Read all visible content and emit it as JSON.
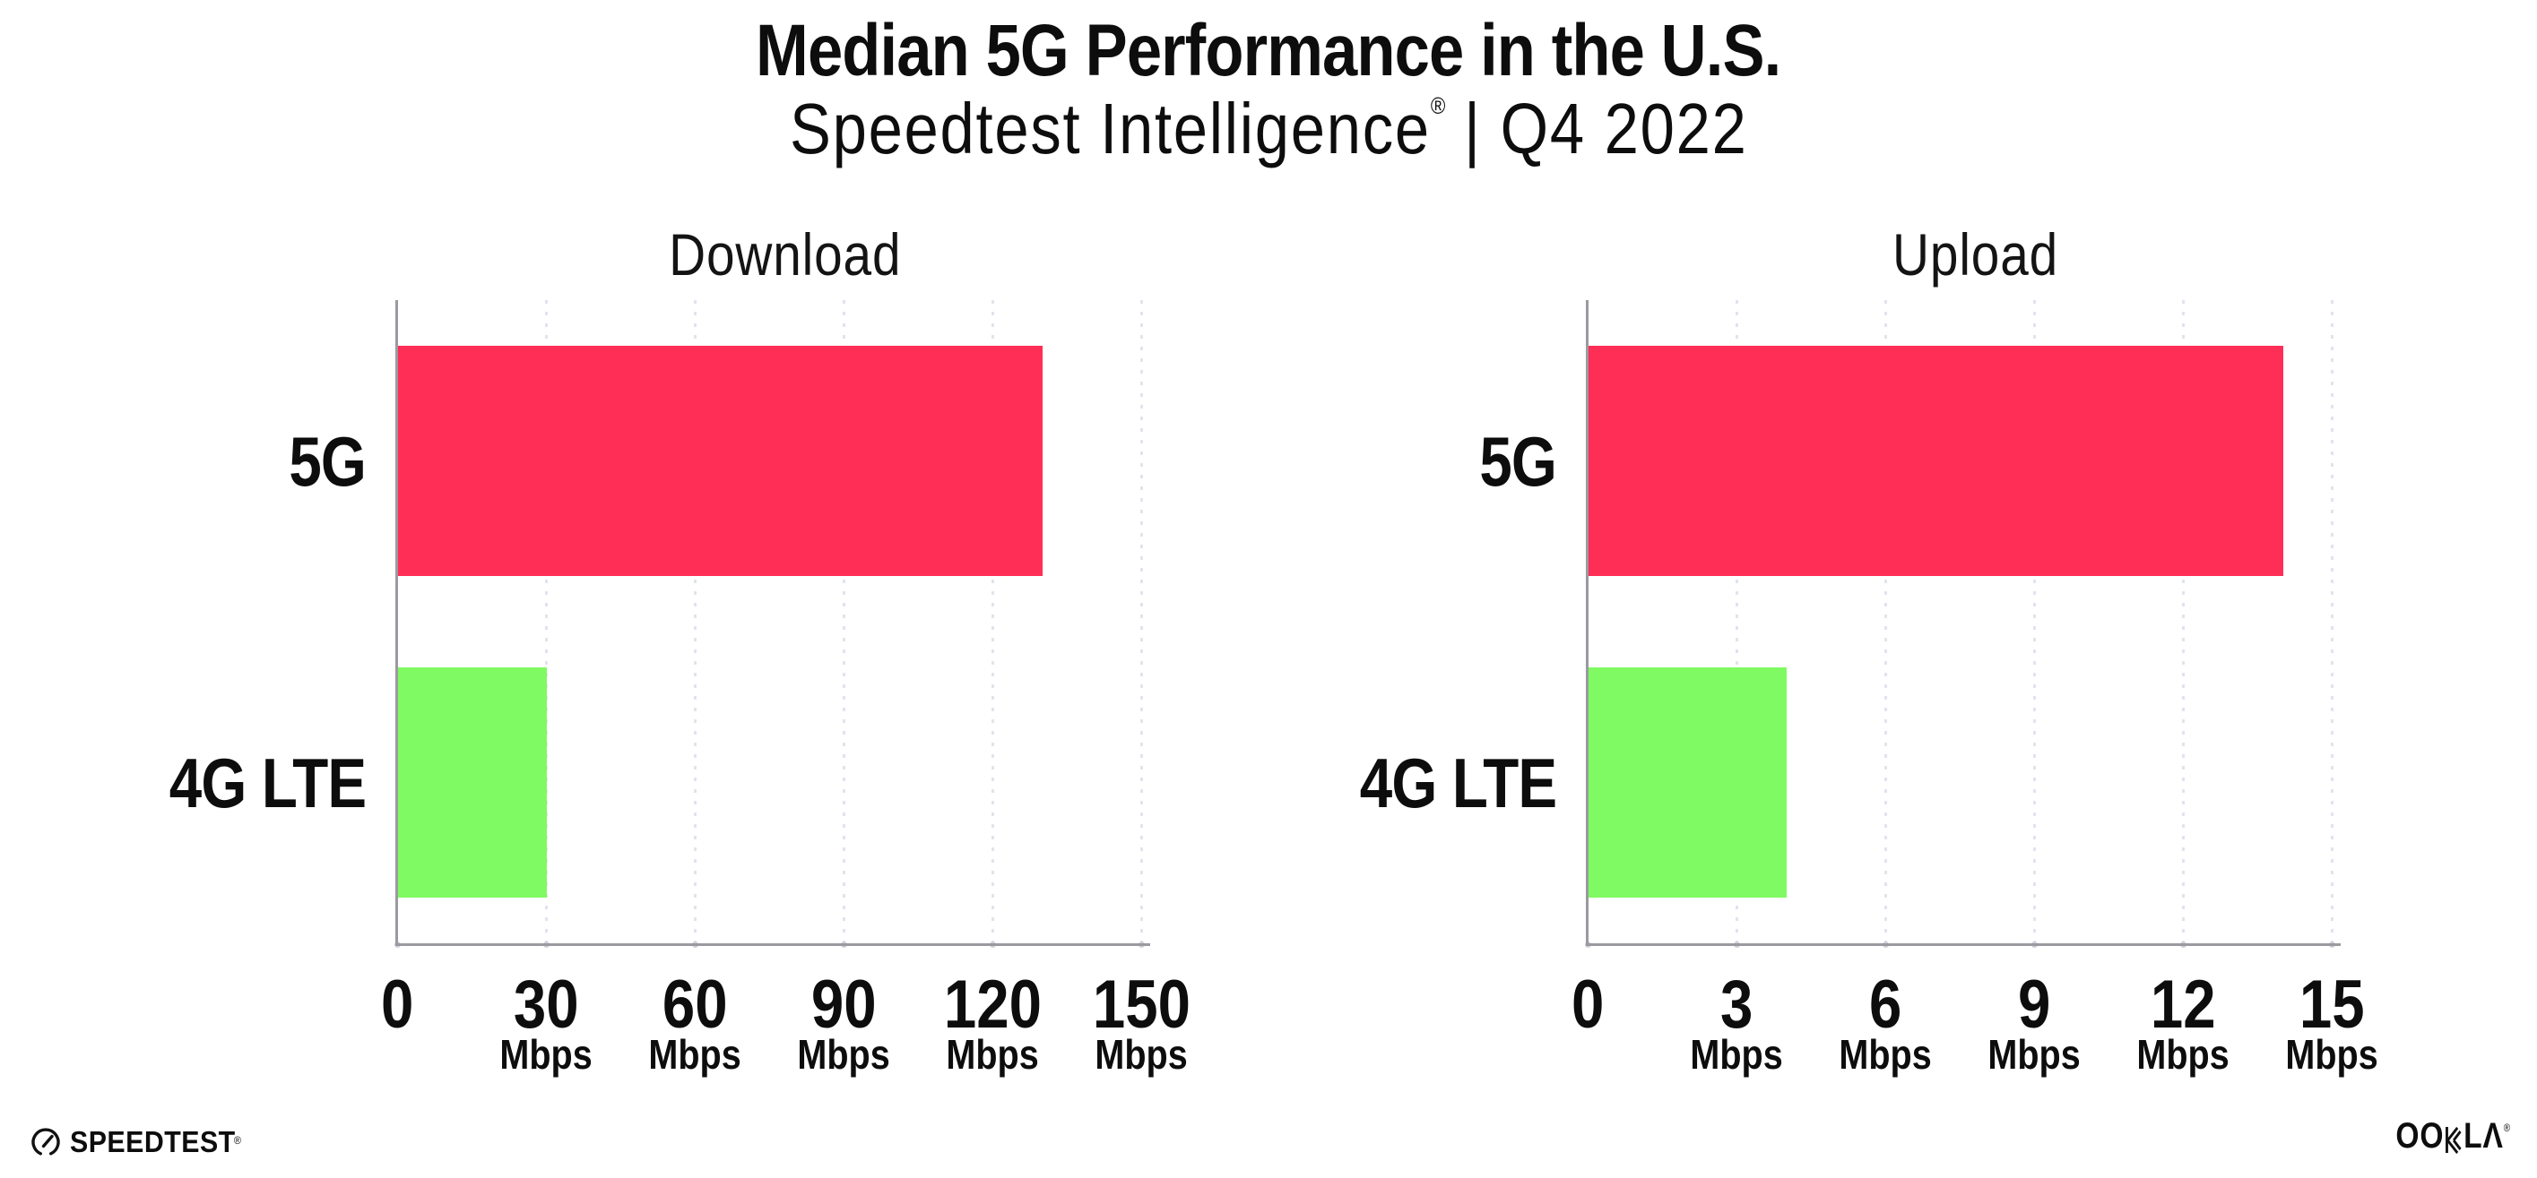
{
  "page": {
    "background": "#FFFFFF"
  },
  "header": {
    "title": "Median 5G Performance in the U.S.",
    "subtitle_brand": "Speedtest Intelligence",
    "subtitle_reg": "®",
    "subtitle_rest": " | Q4 2022"
  },
  "chart_data": [
    {
      "type": "bar",
      "orientation": "horizontal",
      "title": "Download",
      "categories": [
        "5G",
        "4G LTE"
      ],
      "values": [
        130,
        30
      ],
      "unit": "Mbps",
      "xlim": [
        0,
        150
      ],
      "xticks": [
        0,
        30,
        60,
        90,
        120,
        150
      ],
      "tick_unit_label": "Mbps",
      "bar_colors": [
        "#FF2E56",
        "#80FA62"
      ],
      "grid": "vertical-dotted",
      "gridline_color": "#E3E3EE",
      "axis_color": "#9A9AA0"
    },
    {
      "type": "bar",
      "orientation": "horizontal",
      "title": "Upload",
      "categories": [
        "5G",
        "4G LTE"
      ],
      "values": [
        14,
        4
      ],
      "unit": "Mbps",
      "xlim": [
        0,
        15
      ],
      "xticks": [
        0,
        3,
        6,
        9,
        12,
        15
      ],
      "tick_unit_label": "Mbps",
      "bar_colors": [
        "#FF2E56",
        "#80FA62"
      ],
      "grid": "vertical-dotted",
      "gridline_color": "#E3E3EE",
      "axis_color": "#9A9AA0"
    }
  ],
  "footer": {
    "speedtest_logo_text": "SPEEDTEST",
    "speedtest_logo_reg": "®",
    "ookla_logo_text_left": "OO",
    "ookla_logo_text_right": "LΛ",
    "ookla_logo_reg": "®"
  }
}
